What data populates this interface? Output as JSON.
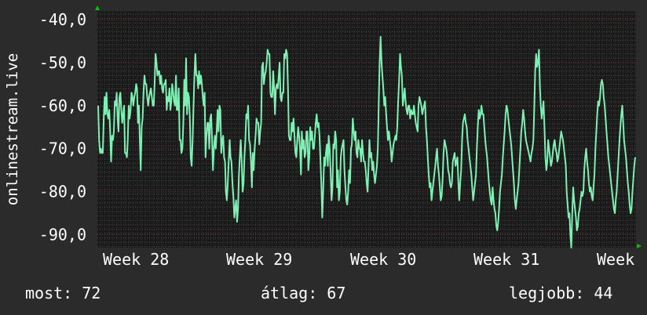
{
  "chart_data": {
    "type": "line",
    "ylabel": "onlinestream.live",
    "ylim": [
      -93,
      -38
    ],
    "y_ticks": [
      "-40,0",
      "-50,0",
      "-60,0",
      "-70,0",
      "-80,0",
      "-90,0"
    ],
    "y_tick_values": [
      -40,
      -50,
      -60,
      -70,
      -80,
      -90
    ],
    "x_ticks": [
      "Week 28",
      "Week 29",
      "Week 30",
      "Week 31",
      "Week"
    ],
    "grid": true,
    "colors": {
      "background": "#2b2b2b",
      "plot": "#1a1a1a",
      "line": "#7ef0b4",
      "grid": "#4a4a4a",
      "major_grid": "#7a2a2a",
      "arrow": "#00c000"
    },
    "series": [
      {
        "values": [
          -60,
          -68,
          -71,
          -70,
          -71,
          -71,
          -63,
          -58,
          -62,
          -57,
          -62,
          -63,
          -61,
          -66,
          -73,
          -67,
          -68,
          -66,
          -59,
          -60,
          -57,
          -63,
          -66,
          -58,
          -57,
          -61,
          -64,
          -62,
          -60,
          -71,
          -71,
          -72,
          -68,
          -60,
          -63,
          -61,
          -57,
          -58,
          -60,
          -58,
          -57,
          -55,
          -56,
          -64,
          -60,
          -68,
          -75,
          -65,
          -63,
          -57,
          -53,
          -55,
          -55,
          -58,
          -60,
          -58,
          -57,
          -56,
          -58,
          -60,
          -60,
          -55,
          -48,
          -50,
          -53,
          -52,
          -52,
          -55,
          -53,
          -56,
          -57,
          -55,
          -55,
          -54,
          -61,
          -58,
          -59,
          -56,
          -61,
          -59,
          -55,
          -57,
          -59,
          -60,
          -53,
          -61,
          -61,
          -56,
          -68,
          -68,
          -71,
          -70,
          -64,
          -54,
          -60,
          -49,
          -62,
          -57,
          -58,
          -63,
          -72,
          -74,
          -68,
          -60,
          -53,
          -48,
          -53,
          -53,
          -56,
          -52,
          -55,
          -53,
          -55,
          -58,
          -60,
          -57,
          -72,
          -67,
          -64,
          -64,
          -70,
          -63,
          -62,
          -68,
          -75,
          -70,
          -67,
          -70,
          -66,
          -61,
          -66,
          -60,
          -61,
          -71,
          -68,
          -67,
          -72,
          -73,
          -80,
          -82,
          -78,
          -73,
          -68,
          -72,
          -73,
          -78,
          -81,
          -86,
          -84,
          -82,
          -87,
          -84,
          -76,
          -72,
          -68,
          -73,
          -80,
          -78,
          -72,
          -68,
          -62,
          -63,
          -60,
          -68,
          -69,
          -73,
          -79,
          -71,
          -75,
          -70,
          -67,
          -63,
          -64,
          -64,
          -69,
          -66,
          -64,
          -51,
          -50,
          -55,
          -53,
          -52,
          -50,
          -47,
          -48,
          -48,
          -57,
          -58,
          -58,
          -52,
          -56,
          -62,
          -56,
          -55,
          -56,
          -53,
          -50,
          -58,
          -59,
          -57,
          -57,
          -48,
          -49,
          -47,
          -48,
          -56,
          -67,
          -68,
          -68,
          -64,
          -66,
          -63,
          -67,
          -71,
          -72,
          -68,
          -65,
          -67,
          -70,
          -76,
          -66,
          -70,
          -68,
          -72,
          -71,
          -66,
          -66,
          -75,
          -72,
          -65,
          -68,
          -66,
          -70,
          -70,
          -67,
          -64,
          -62,
          -65,
          -64,
          -67,
          -72,
          -78,
          -86,
          -80,
          -72,
          -74,
          -71,
          -69,
          -74,
          -67,
          -70,
          -75,
          -82,
          -79,
          -69,
          -70,
          -66,
          -68,
          -79,
          -75,
          -82,
          -80,
          -72,
          -70,
          -69,
          -68,
          -75,
          -79,
          -82,
          -83,
          -80,
          -75,
          -78,
          -70,
          -69,
          -63,
          -66,
          -68,
          -66,
          -71,
          -72,
          -68,
          -70,
          -70,
          -73,
          -68,
          -71,
          -73,
          -73,
          -75,
          -78,
          -80,
          -74,
          -68,
          -72,
          -71,
          -75,
          -73,
          -76,
          -78,
          -76,
          -74,
          -70,
          -60,
          -50,
          -44,
          -50,
          -53,
          -56,
          -60,
          -58,
          -62,
          -65,
          -68,
          -66,
          -68,
          -70,
          -73,
          -71,
          -69,
          -68,
          -67,
          -68,
          -65,
          -59,
          -54,
          -48,
          -51,
          -53,
          -60,
          -58,
          -56,
          -59,
          -61,
          -62,
          -60,
          -60,
          -63,
          -61,
          -62,
          -62,
          -60,
          -62,
          -64,
          -65,
          -66,
          -60,
          -58,
          -59,
          -60,
          -62,
          -61,
          -60,
          -59,
          -65,
          -68,
          -72,
          -76,
          -79,
          -78,
          -82,
          -80,
          -78,
          -76,
          -74,
          -72,
          -70,
          -74,
          -76,
          -79,
          -82,
          -81,
          -77,
          -71,
          -68,
          -69,
          -70,
          -72,
          -75,
          -76,
          -78,
          -79,
          -78,
          -73,
          -72,
          -71,
          -74,
          -73,
          -72,
          -78,
          -82,
          -78,
          -75,
          -68,
          -64,
          -63,
          -62,
          -64,
          -65,
          -68,
          -70,
          -72,
          -74,
          -76,
          -79,
          -82,
          -80,
          -78,
          -76,
          -70,
          -65,
          -61,
          -63,
          -62,
          -60,
          -62,
          -62,
          -65,
          -68,
          -70,
          -72,
          -75,
          -78,
          -80,
          -82,
          -83,
          -79,
          -82,
          -84,
          -85,
          -88,
          -89,
          -87,
          -84,
          -80,
          -78,
          -76,
          -72,
          -69,
          -66,
          -62,
          -60,
          -61,
          -63,
          -65,
          -67,
          -69,
          -72,
          -75,
          -78,
          -82,
          -84,
          -82,
          -80,
          -78,
          -74,
          -70,
          -66,
          -64,
          -61,
          -63,
          -66,
          -68,
          -69,
          -70,
          -71,
          -72,
          -73,
          -71,
          -70,
          -68,
          -60,
          -52,
          -48,
          -51,
          -50,
          -47,
          -55,
          -60,
          -63,
          -61,
          -59,
          -65,
          -72,
          -75,
          -73,
          -68,
          -70,
          -72,
          -74,
          -73,
          -71,
          -69,
          -68,
          -70,
          -71,
          -73,
          -72,
          -70,
          -68,
          -66,
          -67,
          -68,
          -70,
          -72,
          -74,
          -80,
          -83,
          -86,
          -85,
          -90,
          -93,
          -85,
          -79,
          -82,
          -84,
          -86,
          -89,
          -88,
          -85,
          -84,
          -82,
          -80,
          -81,
          -80,
          -75,
          -72,
          -70,
          -73,
          -75,
          -78,
          -80,
          -79,
          -81,
          -82,
          -79,
          -76,
          -70,
          -66,
          -62,
          -59,
          -60,
          -58,
          -55,
          -54,
          -55,
          -58,
          -60,
          -63,
          -66,
          -69,
          -72,
          -74,
          -76,
          -78,
          -80,
          -82,
          -84,
          -85,
          -82,
          -80,
          -76,
          -72,
          -68,
          -65,
          -62,
          -60,
          -64,
          -68,
          -70,
          -72,
          -75,
          -78,
          -80,
          -83,
          -85,
          -84,
          -80,
          -77,
          -74,
          -72
        ]
      }
    ]
  },
  "stats": {
    "now_label": "most:",
    "now_value": "72",
    "avg_label": "átlag:",
    "avg_value": "67",
    "best_label": "legjobb:",
    "best_value": "44"
  }
}
